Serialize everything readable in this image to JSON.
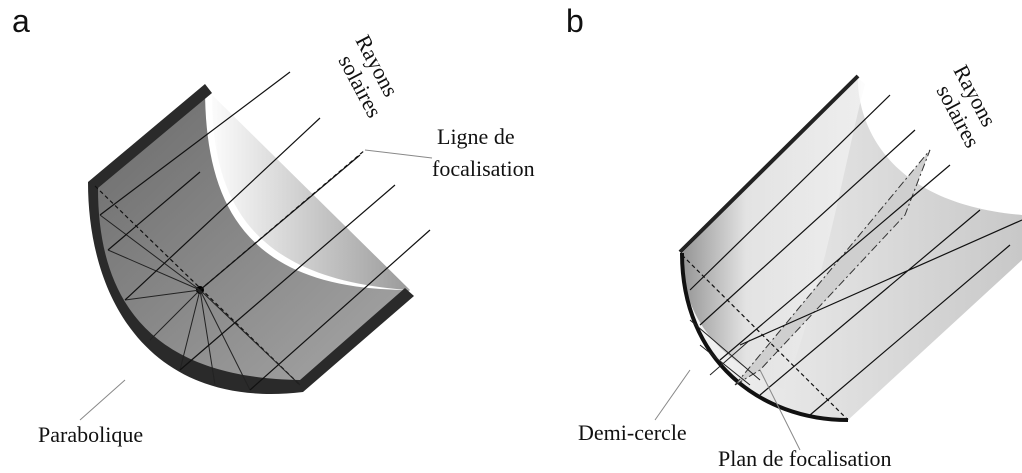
{
  "panels": [
    {
      "label": "a",
      "annotations": [
        {
          "lines": [
            "Rayons",
            "solaires"
          ]
        },
        {
          "lines": [
            "Ligne de",
            "focalisation"
          ]
        },
        {
          "lines": [
            "Parabolique"
          ]
        }
      ]
    },
    {
      "label": "b",
      "annotations": [
        {
          "lines": [
            "Rayons",
            "solaires"
          ]
        },
        {
          "lines": [
            "Demi-cercle"
          ]
        },
        {
          "lines": [
            "Plan de focalisation"
          ]
        }
      ]
    }
  ]
}
